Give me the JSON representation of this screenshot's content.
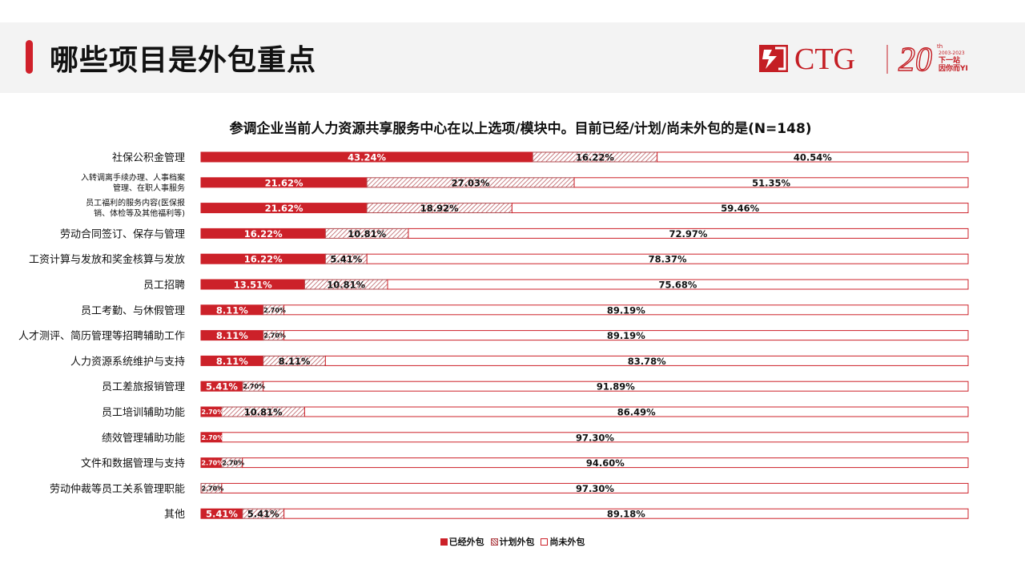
{
  "page": {
    "title": "哪些项目是外包重点"
  },
  "logo": {
    "brand": "CTG",
    "anniversary_number": "20",
    "anniversary_suffix": "th",
    "years": "2003-2023",
    "slogan_line1": "下一站",
    "slogan_line2": "因你而YI"
  },
  "colors": {
    "accent": "#d0202a",
    "outsourced": "#cc2129",
    "planned_hatch": "#b24a4f",
    "not_outsourced_border": "#cc2129"
  },
  "chart_data": {
    "type": "bar",
    "orientation": "horizontal",
    "stacked": true,
    "percent_stacked": true,
    "title": "参调企业当前人力资源共享服务中心在以上选项/模块中。目前已经/计划/尚未外包的是(N=148)",
    "categories": [
      "社保公积金管理",
      "入转调离手续办理、人事档案管理、在职人事服务",
      "员工福利的服务内容(医保报销、体检等及其他福利等)",
      "劳动合同签订、保存与管理",
      "工资计算与发放和奖金核算与发放",
      "员工招聘",
      "员工考勤、与休假管理",
      "人才测评、简历管理等招聘辅助工作",
      "人力资源系统维护与支持",
      "员工差旅报销管理",
      "员工培训辅助功能",
      "绩效管理辅助功能",
      "文件和数据管理与支持",
      "劳动仲裁等员工关系管理职能",
      "其他"
    ],
    "category_lines": [
      [
        "社保公积金管理"
      ],
      [
        "入转调离手续办理、人事档案",
        "管理、在职人事服务"
      ],
      [
        "员工福利的服务内容(医保报",
        "销、体检等及其他福利等)"
      ],
      [
        "劳动合同签订、保存与管理"
      ],
      [
        "工资计算与发放和奖金核算与发放"
      ],
      [
        "员工招聘"
      ],
      [
        "员工考勤、与休假管理"
      ],
      [
        "人才测评、简历管理等招聘辅助工作"
      ],
      [
        "人力资源系统维护与支持"
      ],
      [
        "员工差旅报销管理"
      ],
      [
        "员工培训辅助功能"
      ],
      [
        "绩效管理辅助功能"
      ],
      [
        "文件和数据管理与支持"
      ],
      [
        "劳动仲裁等员工关系管理职能"
      ],
      [
        "其他"
      ]
    ],
    "series": [
      {
        "name": "已经外包",
        "values": [
          43.24,
          21.62,
          21.62,
          16.22,
          16.22,
          13.51,
          8.11,
          8.11,
          8.11,
          5.41,
          2.7,
          2.7,
          2.7,
          0,
          5.41
        ]
      },
      {
        "name": "计划外包",
        "values": [
          16.22,
          27.03,
          18.92,
          10.81,
          5.41,
          10.81,
          2.7,
          2.7,
          8.11,
          2.7,
          10.81,
          0,
          2.7,
          2.7,
          5.41
        ]
      },
      {
        "name": "尚未外包",
        "values": [
          40.54,
          51.35,
          59.46,
          72.97,
          78.37,
          75.68,
          89.19,
          89.19,
          83.78,
          91.89,
          86.49,
          97.3,
          94.6,
          97.3,
          89.18
        ]
      }
    ],
    "value_suffix": "%",
    "xlim": [
      0,
      100
    ],
    "legend": "bottom-center",
    "grid": false
  }
}
